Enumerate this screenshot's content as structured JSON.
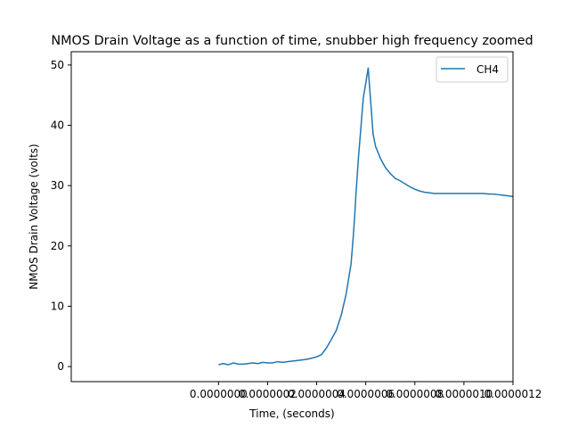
{
  "chart_data": {
    "type": "line",
    "title": "NMOS Drain Voltage as a function of time, snubber high frequency zoomed",
    "xlabel": "Time, (seconds)",
    "ylabel": "NMOS Drain Voltage (volts)",
    "xlim": [
      -6e-07,
      1.2e-06
    ],
    "ylim": [
      -2.5,
      52.2
    ],
    "xticks": [
      0.0,
      2e-07,
      4e-07,
      6e-07,
      8e-07,
      1e-06,
      1.2e-06
    ],
    "xtick_labels": [
      "0.0000000",
      "0.0000002",
      "0.0000004",
      "0.0000006",
      "0.0000008",
      "0.0000010",
      "0.0000012"
    ],
    "yticks": [
      0,
      10,
      20,
      30,
      40,
      50
    ],
    "ytick_labels": [
      "0",
      "10",
      "20",
      "30",
      "40",
      "50"
    ],
    "legend_position": "top-right",
    "grid": false,
    "series": [
      {
        "name": "CH4",
        "color": "#1f77b4",
        "x": [
          0.0,
          2e-08,
          4e-08,
          6e-08,
          8e-08,
          1e-07,
          1.2e-07,
          1.4e-07,
          1.6e-07,
          1.8e-07,
          2e-07,
          2.2e-07,
          2.4e-07,
          2.6e-07,
          2.8e-07,
          3e-07,
          3.2e-07,
          3.4e-07,
          3.6e-07,
          3.8e-07,
          4e-07,
          4.2e-07,
          4.4e-07,
          4.6e-07,
          4.8e-07,
          5e-07,
          5.2e-07,
          5.4e-07,
          5.45e-07,
          5.5e-07,
          5.55e-07,
          5.6e-07,
          5.65e-07,
          5.7e-07,
          5.75e-07,
          5.8e-07,
          5.85e-07,
          5.9e-07,
          6e-07,
          6.1e-07,
          6.2e-07,
          6.3e-07,
          6.4e-07,
          6.5e-07,
          6.6e-07,
          6.8e-07,
          7e-07,
          7.2e-07,
          7.4e-07,
          7.6e-07,
          7.8e-07,
          8e-07,
          8.2e-07,
          8.4e-07,
          8.6e-07,
          8.8e-07,
          9e-07,
          9.2e-07,
          9.4e-07,
          9.6e-07,
          9.8e-07,
          1e-06,
          1.02e-06,
          1.04e-06,
          1.06e-06,
          1.08e-06,
          1.1e-06,
          1.12e-06,
          1.14e-06,
          1.16e-06,
          1.18e-06,
          1.2e-06
        ],
        "y": [
          0.3,
          0.5,
          0.3,
          0.6,
          0.4,
          0.4,
          0.5,
          0.6,
          0.5,
          0.7,
          0.6,
          0.6,
          0.8,
          0.7,
          0.8,
          0.9,
          1.0,
          1.1,
          1.2,
          1.4,
          1.6,
          2.0,
          3.1,
          4.5,
          6.0,
          8.5,
          12.0,
          17.0,
          19.5,
          22.0,
          25.0,
          28.5,
          31.5,
          34.5,
          37.0,
          39.5,
          42.0,
          44.5,
          47.0,
          49.5,
          44.0,
          38.5,
          36.5,
          35.5,
          34.5,
          33.0,
          32.0,
          31.2,
          30.8,
          30.3,
          29.8,
          29.4,
          29.1,
          28.9,
          28.8,
          28.7,
          28.7,
          28.7,
          28.7,
          28.7,
          28.7,
          28.7,
          28.7,
          28.7,
          28.7,
          28.7,
          28.6,
          28.6,
          28.5,
          28.4,
          28.3,
          28.2
        ]
      }
    ]
  }
}
